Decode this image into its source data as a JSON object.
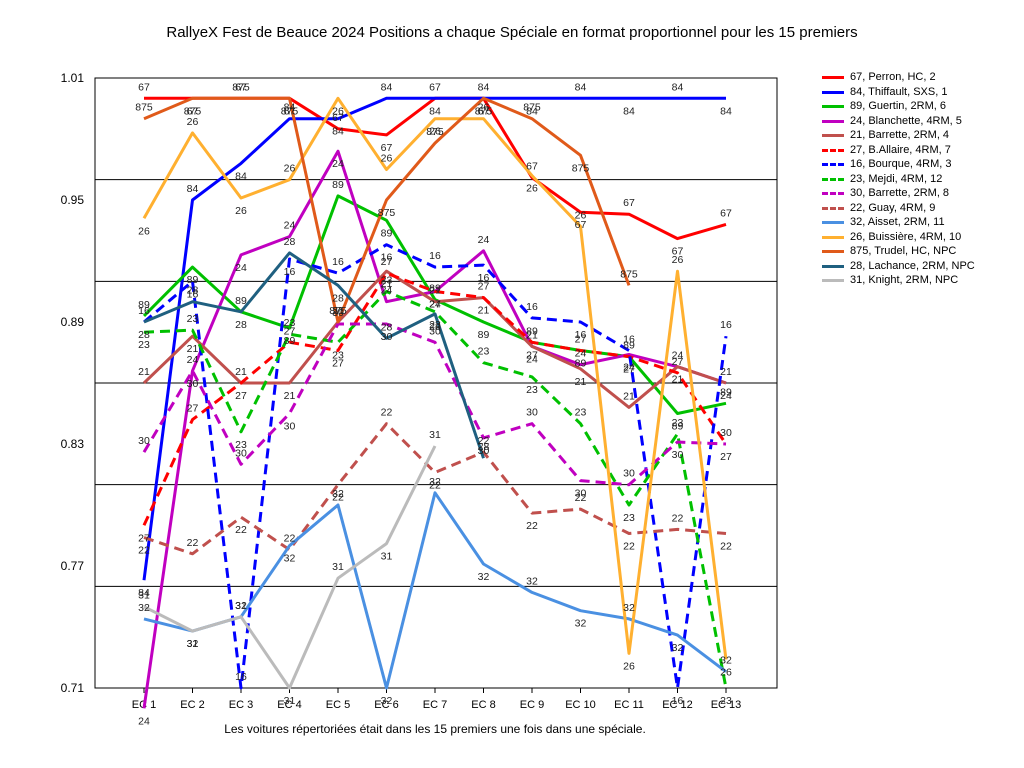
{
  "chart_data": {
    "type": "line",
    "title": "RallyeX Fest de Beauce 2024  Positions a chaque Spéciale en format proportionnel pour les 15 premiers",
    "footnote": "Les voitures répertoriées était dans les 15 premiers une fois dans une spéciale.",
    "categories": [
      "EC 1",
      "EC 2",
      "EC 3",
      "EC 4",
      "EC 5",
      "EC 6",
      "EC 7",
      "EC 8",
      "EC 9",
      "EC 10",
      "EC 11",
      "EC 12",
      "EC 13"
    ],
    "ylim": [
      0.71,
      1.01
    ],
    "yticks": [
      "0.71",
      "0.77",
      "0.83",
      "0.89",
      "0.95",
      "1.01"
    ],
    "grid": true,
    "legend_position": "right",
    "series": [
      {
        "name": "67, Perron, HC, 2",
        "label": "67",
        "color": "#ff0000",
        "dash": false,
        "values": [
          1.0,
          1.0,
          1.0,
          1.0,
          0.985,
          0.982,
          1.0,
          1.0,
          0.961,
          0.944,
          0.943,
          0.931,
          0.938
        ]
      },
      {
        "name": "84, Thiffault, SXS, 1",
        "label": "84",
        "color": "#0000ff",
        "dash": false,
        "values": [
          0.763,
          0.95,
          0.968,
          0.99,
          0.99,
          1.0,
          1.0,
          1.0,
          1.0,
          1.0,
          1.0,
          1.0,
          1.0
        ]
      },
      {
        "name": "89, Guertin, 2RM, 6",
        "label": "89",
        "color": "#00c000",
        "dash": false,
        "values": [
          0.893,
          0.917,
          0.895,
          0.887,
          0.952,
          0.94,
          0.901,
          0.89,
          0.88,
          0.876,
          0.873,
          0.845,
          0.85
        ]
      },
      {
        "name": "24, Blanchette, 4RM, 5",
        "label": "24",
        "color": "#c000c0",
        "dash": false,
        "values": [
          0.7,
          0.866,
          0.923,
          0.932,
          0.974,
          0.9,
          0.905,
          0.925,
          0.878,
          0.869,
          0.874,
          0.868,
          0.86
        ]
      },
      {
        "name": "21, Barrette, 2RM, 4",
        "label": "21",
        "color": "#c0504d",
        "dash": false,
        "values": [
          0.86,
          0.883,
          0.86,
          0.86,
          0.89,
          0.915,
          0.9,
          0.902,
          0.878,
          0.867,
          0.848,
          0.868,
          0.86
        ]
      },
      {
        "name": "27, B.Allaire, 4RM, 7",
        "label": "27",
        "color": "#ff0000",
        "dash": true,
        "values": [
          0.79,
          0.842,
          0.86,
          0.88,
          0.876,
          0.914,
          0.905,
          0.902,
          0.88,
          0.876,
          0.873,
          0.865,
          0.83
        ]
      },
      {
        "name": "16, Bourque, 4RM, 3",
        "label": "16",
        "color": "#0000ff",
        "dash": true,
        "values": [
          0.89,
          0.91,
          0.71,
          0.921,
          0.914,
          0.928,
          0.917,
          0.918,
          0.892,
          0.89,
          0.876,
          0.71,
          0.883
        ]
      },
      {
        "name": "23, Mejdi, 4RM, 12",
        "label": "23",
        "color": "#00c000",
        "dash": true,
        "values": [
          0.885,
          0.886,
          0.836,
          0.884,
          0.88,
          0.905,
          0.895,
          0.87,
          0.863,
          0.84,
          0.8,
          0.835,
          0.71
        ]
      },
      {
        "name": "30, Barrette, 2RM, 8",
        "label": "30",
        "color": "#c000c0",
        "dash": true,
        "values": [
          0.826,
          0.866,
          0.82,
          0.845,
          0.889,
          0.889,
          0.88,
          0.833,
          0.84,
          0.812,
          0.81,
          0.831,
          0.83
        ]
      },
      {
        "name": "22, Guay, 4RM, 9",
        "label": "22",
        "color": "#c0504d",
        "dash": true,
        "values": [
          0.784,
          0.776,
          0.794,
          0.778,
          0.81,
          0.84,
          0.816,
          0.826,
          0.796,
          0.798,
          0.786,
          0.788,
          0.786
        ]
      },
      {
        "name": "32, Aisset, 2RM, 11",
        "label": "32",
        "color": "#4a90e2",
        "dash": false,
        "values": [
          0.744,
          0.738,
          0.745,
          0.78,
          0.8,
          0.71,
          0.806,
          0.771,
          0.757,
          0.748,
          0.744,
          0.736,
          0.718
        ]
      },
      {
        "name": "26, Buissière, 4RM, 10",
        "label": "26",
        "color": "#ffb030",
        "dash": false,
        "values": [
          0.941,
          0.983,
          0.951,
          0.96,
          1.0,
          0.965,
          0.99,
          0.99,
          0.962,
          0.937,
          0.727,
          0.915,
          0.724
        ]
      },
      {
        "name": "875, Trudel, HC,  NPC",
        "label": "875",
        "color": "#e05a1a",
        "dash": false,
        "values": [
          0.99,
          1.0,
          1.0,
          1.0,
          0.89,
          0.95,
          0.978,
          1.0,
          0.99,
          0.972,
          0.908,
          null,
          null
        ]
      },
      {
        "name": "28, Lachance, 2RM,  NPC",
        "label": "28",
        "color": "#1f6080",
        "dash": false,
        "values": [
          0.89,
          0.9,
          0.895,
          0.924,
          0.908,
          0.882,
          0.894,
          0.823,
          null,
          null,
          null,
          null,
          null
        ]
      },
      {
        "name": "31, Knight, 2RM,  NPC",
        "label": "31",
        "color": "#bbbbbb",
        "dash": false,
        "values": [
          0.75,
          0.738,
          0.745,
          0.71,
          0.764,
          0.781,
          0.829,
          null,
          null,
          null,
          null,
          null,
          null
        ]
      }
    ]
  }
}
